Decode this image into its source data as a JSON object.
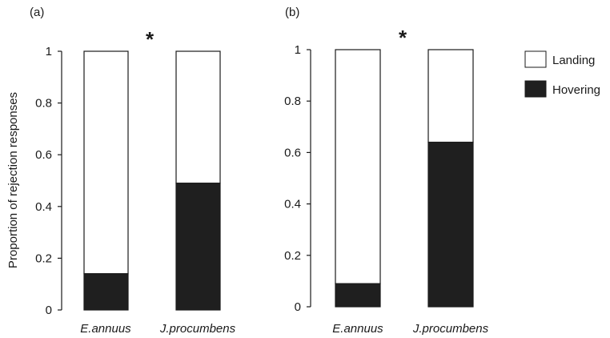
{
  "colors": {
    "landing": "#ffffff",
    "hovering": "#1f1f1f",
    "axis": "#1a1a1a"
  },
  "ylabel": "Proportion of rejection responses",
  "legend": [
    {
      "name": "Landing",
      "color": "#ffffff"
    },
    {
      "name": "Hovering",
      "color": "#1f1f1f"
    }
  ],
  "chart_data": [
    {
      "type": "bar",
      "stacked": true,
      "panel_label": "(a)",
      "significance": "*",
      "categories": [
        "E.annuus",
        "J.procumbens"
      ],
      "series": [
        {
          "name": "Hovering",
          "values": [
            0.14,
            0.49
          ]
        },
        {
          "name": "Landing",
          "values": [
            0.86,
            0.51
          ]
        }
      ],
      "ylabel": "Proportion of rejection responses",
      "ylim": [
        0,
        1
      ],
      "yticks": [
        "0",
        "0.2",
        "0.4",
        "0.6",
        "0.8",
        "1"
      ],
      "legend": "none"
    },
    {
      "type": "bar",
      "stacked": true,
      "panel_label": "(b)",
      "significance": "*",
      "categories": [
        "E.annuus",
        "J.procumbens"
      ],
      "series": [
        {
          "name": "Hovering",
          "values": [
            0.09,
            0.64
          ]
        },
        {
          "name": "Landing",
          "values": [
            0.91,
            0.36
          ]
        }
      ],
      "ylabel": "",
      "ylim": [
        0,
        1
      ],
      "yticks": [
        "0",
        "0.2",
        "0.4",
        "0.6",
        "0.8",
        "1"
      ],
      "legend": "right"
    }
  ]
}
